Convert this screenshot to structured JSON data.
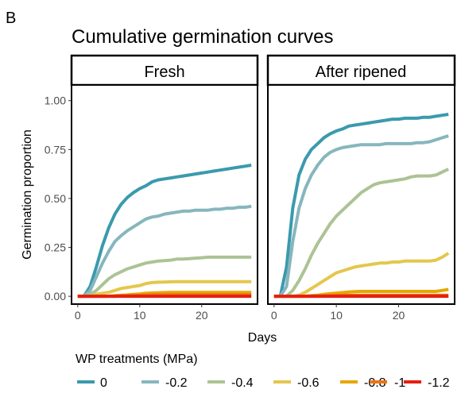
{
  "chart_data": {
    "type": "line",
    "panel_letter": "B",
    "title": "Cumulative germination curves",
    "xlabel": "Days",
    "ylabel": "Germination proportion",
    "xlim": [
      0,
      28
    ],
    "ylim": [
      0,
      1.05
    ],
    "x_ticks": [
      0,
      10,
      20
    ],
    "y_ticks": [
      0.0,
      0.25,
      0.5,
      0.75,
      1.0
    ],
    "y_tick_labels": [
      "0.00",
      "0.25",
      "0.50",
      "0.75",
      "1.00"
    ],
    "facets": [
      "Fresh",
      "After ripened"
    ],
    "legend": {
      "title": "WP treatments (MPa)",
      "placement": "bottom",
      "entries": [
        {
          "name": "0",
          "color": "#3a9aad"
        },
        {
          "name": "-0.2",
          "color": "#87b6bd"
        },
        {
          "name": "-0.4",
          "color": "#acc394"
        },
        {
          "name": "-0.6",
          "color": "#e3c74e"
        },
        {
          "name": "-0.8",
          "color": "#e6a700"
        },
        {
          "name": "-1",
          "color": "#eb7514"
        },
        {
          "name": "-1.2",
          "color": "#e61e10"
        }
      ]
    },
    "panels": [
      {
        "name": "Fresh",
        "series": [
          {
            "name": "0",
            "x": [
              0,
              1,
              2,
              3,
              4,
              5,
              6,
              7,
              8,
              9,
              10,
              11,
              12,
              13,
              14,
              15,
              16,
              17,
              18,
              19,
              20,
              21,
              22,
              23,
              24,
              25,
              26,
              27,
              28
            ],
            "values": [
              0,
              0,
              0.05,
              0.15,
              0.26,
              0.35,
              0.42,
              0.47,
              0.505,
              0.53,
              0.55,
              0.565,
              0.585,
              0.595,
              0.6,
              0.605,
              0.61,
              0.615,
              0.62,
              0.625,
              0.63,
              0.635,
              0.64,
              0.645,
              0.65,
              0.655,
              0.66,
              0.665,
              0.67
            ]
          },
          {
            "name": "-0.2",
            "x": [
              0,
              1,
              2,
              3,
              4,
              5,
              6,
              7,
              8,
              9,
              10,
              11,
              12,
              13,
              14,
              15,
              16,
              17,
              18,
              19,
              20,
              21,
              22,
              23,
              24,
              25,
              26,
              27,
              28
            ],
            "values": [
              0,
              0,
              0.03,
              0.1,
              0.17,
              0.23,
              0.28,
              0.31,
              0.335,
              0.355,
              0.375,
              0.395,
              0.405,
              0.41,
              0.42,
              0.425,
              0.43,
              0.435,
              0.435,
              0.44,
              0.44,
              0.44,
              0.445,
              0.445,
              0.45,
              0.45,
              0.455,
              0.455,
              0.46
            ]
          },
          {
            "name": "-0.4",
            "x": [
              0,
              1,
              2,
              3,
              4,
              5,
              6,
              7,
              8,
              9,
              10,
              11,
              12,
              13,
              14,
              15,
              16,
              17,
              18,
              19,
              20,
              21,
              22,
              23,
              24,
              25,
              26,
              27,
              28
            ],
            "values": [
              0,
              0,
              0.01,
              0.03,
              0.06,
              0.09,
              0.11,
              0.125,
              0.14,
              0.15,
              0.16,
              0.17,
              0.175,
              0.18,
              0.182,
              0.185,
              0.19,
              0.19,
              0.192,
              0.195,
              0.197,
              0.2,
              0.2,
              0.2,
              0.2,
              0.2,
              0.2,
              0.2,
              0.2
            ]
          },
          {
            "name": "-0.6",
            "x": [
              0,
              1,
              2,
              3,
              4,
              5,
              6,
              7,
              8,
              9,
              10,
              11,
              12,
              13,
              14,
              15,
              16,
              17,
              18,
              19,
              20,
              21,
              22,
              23,
              24,
              25,
              26,
              27,
              28
            ],
            "values": [
              0,
              0,
              0,
              0.01,
              0.015,
              0.02,
              0.03,
              0.04,
              0.045,
              0.05,
              0.055,
              0.065,
              0.07,
              0.072,
              0.073,
              0.074,
              0.075,
              0.075,
              0.075,
              0.075,
              0.075,
              0.075,
              0.075,
              0.075,
              0.075,
              0.075,
              0.075,
              0.075,
              0.075
            ]
          },
          {
            "name": "-0.8",
            "x": [
              0,
              1,
              2,
              3,
              4,
              5,
              6,
              7,
              8,
              9,
              10,
              11,
              12,
              13,
              14,
              15,
              16,
              17,
              18,
              19,
              20,
              21,
              22,
              23,
              24,
              25,
              26,
              27,
              28
            ],
            "values": [
              0,
              0,
              0,
              0,
              0,
              0,
              0.003,
              0.005,
              0.007,
              0.01,
              0.012,
              0.015,
              0.017,
              0.018,
              0.019,
              0.02,
              0.02,
              0.02,
              0.02,
              0.02,
              0.02,
              0.02,
              0.02,
              0.02,
              0.02,
              0.02,
              0.02,
              0.02,
              0.02
            ]
          },
          {
            "name": "-1",
            "x": [
              0,
              1,
              2,
              3,
              4,
              5,
              6,
              7,
              8,
              9,
              10,
              11,
              12,
              13,
              14,
              15,
              16,
              17,
              18,
              19,
              20,
              21,
              22,
              23,
              24,
              25,
              26,
              27,
              28
            ],
            "values": [
              0,
              0,
              0,
              0,
              0,
              0,
              0,
              0.002,
              0.003,
              0.004,
              0.005,
              0.006,
              0.007,
              0.008,
              0.008,
              0.008,
              0.008,
              0.008,
              0.008,
              0.008,
              0.008,
              0.008,
              0.008,
              0.008,
              0.008,
              0.008,
              0.008,
              0.008,
              0.008
            ]
          },
          {
            "name": "-1.2",
            "x": [
              0,
              1,
              2,
              3,
              4,
              5,
              6,
              7,
              8,
              9,
              10,
              11,
              12,
              13,
              14,
              15,
              16,
              17,
              18,
              19,
              20,
              21,
              22,
              23,
              24,
              25,
              26,
              27,
              28
            ],
            "values": [
              0,
              0,
              0,
              0,
              0,
              0,
              0,
              0,
              0,
              0,
              0,
              0,
              0,
              0,
              0,
              0,
              0,
              0,
              0,
              0,
              0,
              0,
              0,
              0,
              0,
              0,
              0,
              0,
              0
            ]
          }
        ]
      },
      {
        "name": "After ripened",
        "series": [
          {
            "name": "0",
            "x": [
              0,
              1,
              2,
              3,
              4,
              5,
              6,
              7,
              8,
              9,
              10,
              11,
              12,
              13,
              14,
              15,
              16,
              17,
              18,
              19,
              20,
              21,
              22,
              23,
              24,
              25,
              26,
              27,
              28
            ],
            "values": [
              0,
              0,
              0.15,
              0.45,
              0.62,
              0.7,
              0.75,
              0.78,
              0.81,
              0.83,
              0.845,
              0.855,
              0.87,
              0.875,
              0.88,
              0.885,
              0.89,
              0.895,
              0.9,
              0.905,
              0.905,
              0.91,
              0.91,
              0.91,
              0.915,
              0.915,
              0.92,
              0.925,
              0.93
            ]
          },
          {
            "name": "-0.2",
            "x": [
              0,
              1,
              2,
              3,
              4,
              5,
              6,
              7,
              8,
              9,
              10,
              11,
              12,
              13,
              14,
              15,
              16,
              17,
              18,
              19,
              20,
              21,
              22,
              23,
              24,
              25,
              26,
              27,
              28
            ],
            "values": [
              0,
              0,
              0.05,
              0.28,
              0.45,
              0.55,
              0.62,
              0.67,
              0.71,
              0.735,
              0.75,
              0.76,
              0.765,
              0.77,
              0.775,
              0.775,
              0.775,
              0.775,
              0.78,
              0.78,
              0.78,
              0.78,
              0.78,
              0.785,
              0.785,
              0.79,
              0.8,
              0.81,
              0.82
            ]
          },
          {
            "name": "-0.4",
            "x": [
              0,
              1,
              2,
              3,
              4,
              5,
              6,
              7,
              8,
              9,
              10,
              11,
              12,
              13,
              14,
              15,
              16,
              17,
              18,
              19,
              20,
              21,
              22,
              23,
              24,
              25,
              26,
              27,
              28
            ],
            "values": [
              0,
              0,
              0,
              0.03,
              0.08,
              0.14,
              0.21,
              0.27,
              0.32,
              0.37,
              0.41,
              0.44,
              0.47,
              0.5,
              0.53,
              0.55,
              0.57,
              0.58,
              0.585,
              0.59,
              0.595,
              0.6,
              0.61,
              0.615,
              0.615,
              0.615,
              0.62,
              0.635,
              0.65
            ]
          },
          {
            "name": "-0.6",
            "x": [
              0,
              1,
              2,
              3,
              4,
              5,
              6,
              7,
              8,
              9,
              10,
              11,
              12,
              13,
              14,
              15,
              16,
              17,
              18,
              19,
              20,
              21,
              22,
              23,
              24,
              25,
              26,
              27,
              28
            ],
            "values": [
              0,
              0,
              0,
              0,
              0.005,
              0.02,
              0.04,
              0.06,
              0.08,
              0.1,
              0.12,
              0.13,
              0.14,
              0.15,
              0.155,
              0.16,
              0.165,
              0.17,
              0.17,
              0.175,
              0.175,
              0.18,
              0.18,
              0.18,
              0.18,
              0.18,
              0.185,
              0.2,
              0.22
            ]
          },
          {
            "name": "-0.8",
            "x": [
              0,
              1,
              2,
              3,
              4,
              5,
              6,
              7,
              8,
              9,
              10,
              11,
              12,
              13,
              14,
              15,
              16,
              17,
              18,
              19,
              20,
              21,
              22,
              23,
              24,
              25,
              26,
              27,
              28
            ],
            "values": [
              0,
              0,
              0,
              0,
              0,
              0,
              0.003,
              0.006,
              0.01,
              0.013,
              0.016,
              0.019,
              0.022,
              0.024,
              0.025,
              0.025,
              0.025,
              0.025,
              0.025,
              0.025,
              0.025,
              0.025,
              0.025,
              0.025,
              0.025,
              0.025,
              0.025,
              0.03,
              0.035
            ]
          },
          {
            "name": "-1",
            "x": [
              0,
              1,
              2,
              3,
              4,
              5,
              6,
              7,
              8,
              9,
              10,
              11,
              12,
              13,
              14,
              15,
              16,
              17,
              18,
              19,
              20,
              21,
              22,
              23,
              24,
              25,
              26,
              27,
              28
            ],
            "values": [
              0,
              0,
              0,
              0,
              0,
              0,
              0,
              0,
              0.002,
              0.003,
              0.004,
              0.005,
              0.005,
              0.005,
              0.005,
              0.005,
              0.005,
              0.005,
              0.005,
              0.005,
              0.005,
              0.005,
              0.005,
              0.005,
              0.005,
              0.005,
              0.005,
              0.005,
              0.005
            ]
          },
          {
            "name": "-1.2",
            "x": [
              0,
              1,
              2,
              3,
              4,
              5,
              6,
              7,
              8,
              9,
              10,
              11,
              12,
              13,
              14,
              15,
              16,
              17,
              18,
              19,
              20,
              21,
              22,
              23,
              24,
              25,
              26,
              27,
              28
            ],
            "values": [
              0,
              0,
              0,
              0,
              0,
              0,
              0,
              0,
              0,
              0,
              0,
              0,
              0,
              0,
              0,
              0,
              0,
              0,
              0,
              0,
              0,
              0,
              0,
              0,
              0,
              0,
              0,
              0,
              0
            ]
          }
        ]
      }
    ]
  }
}
